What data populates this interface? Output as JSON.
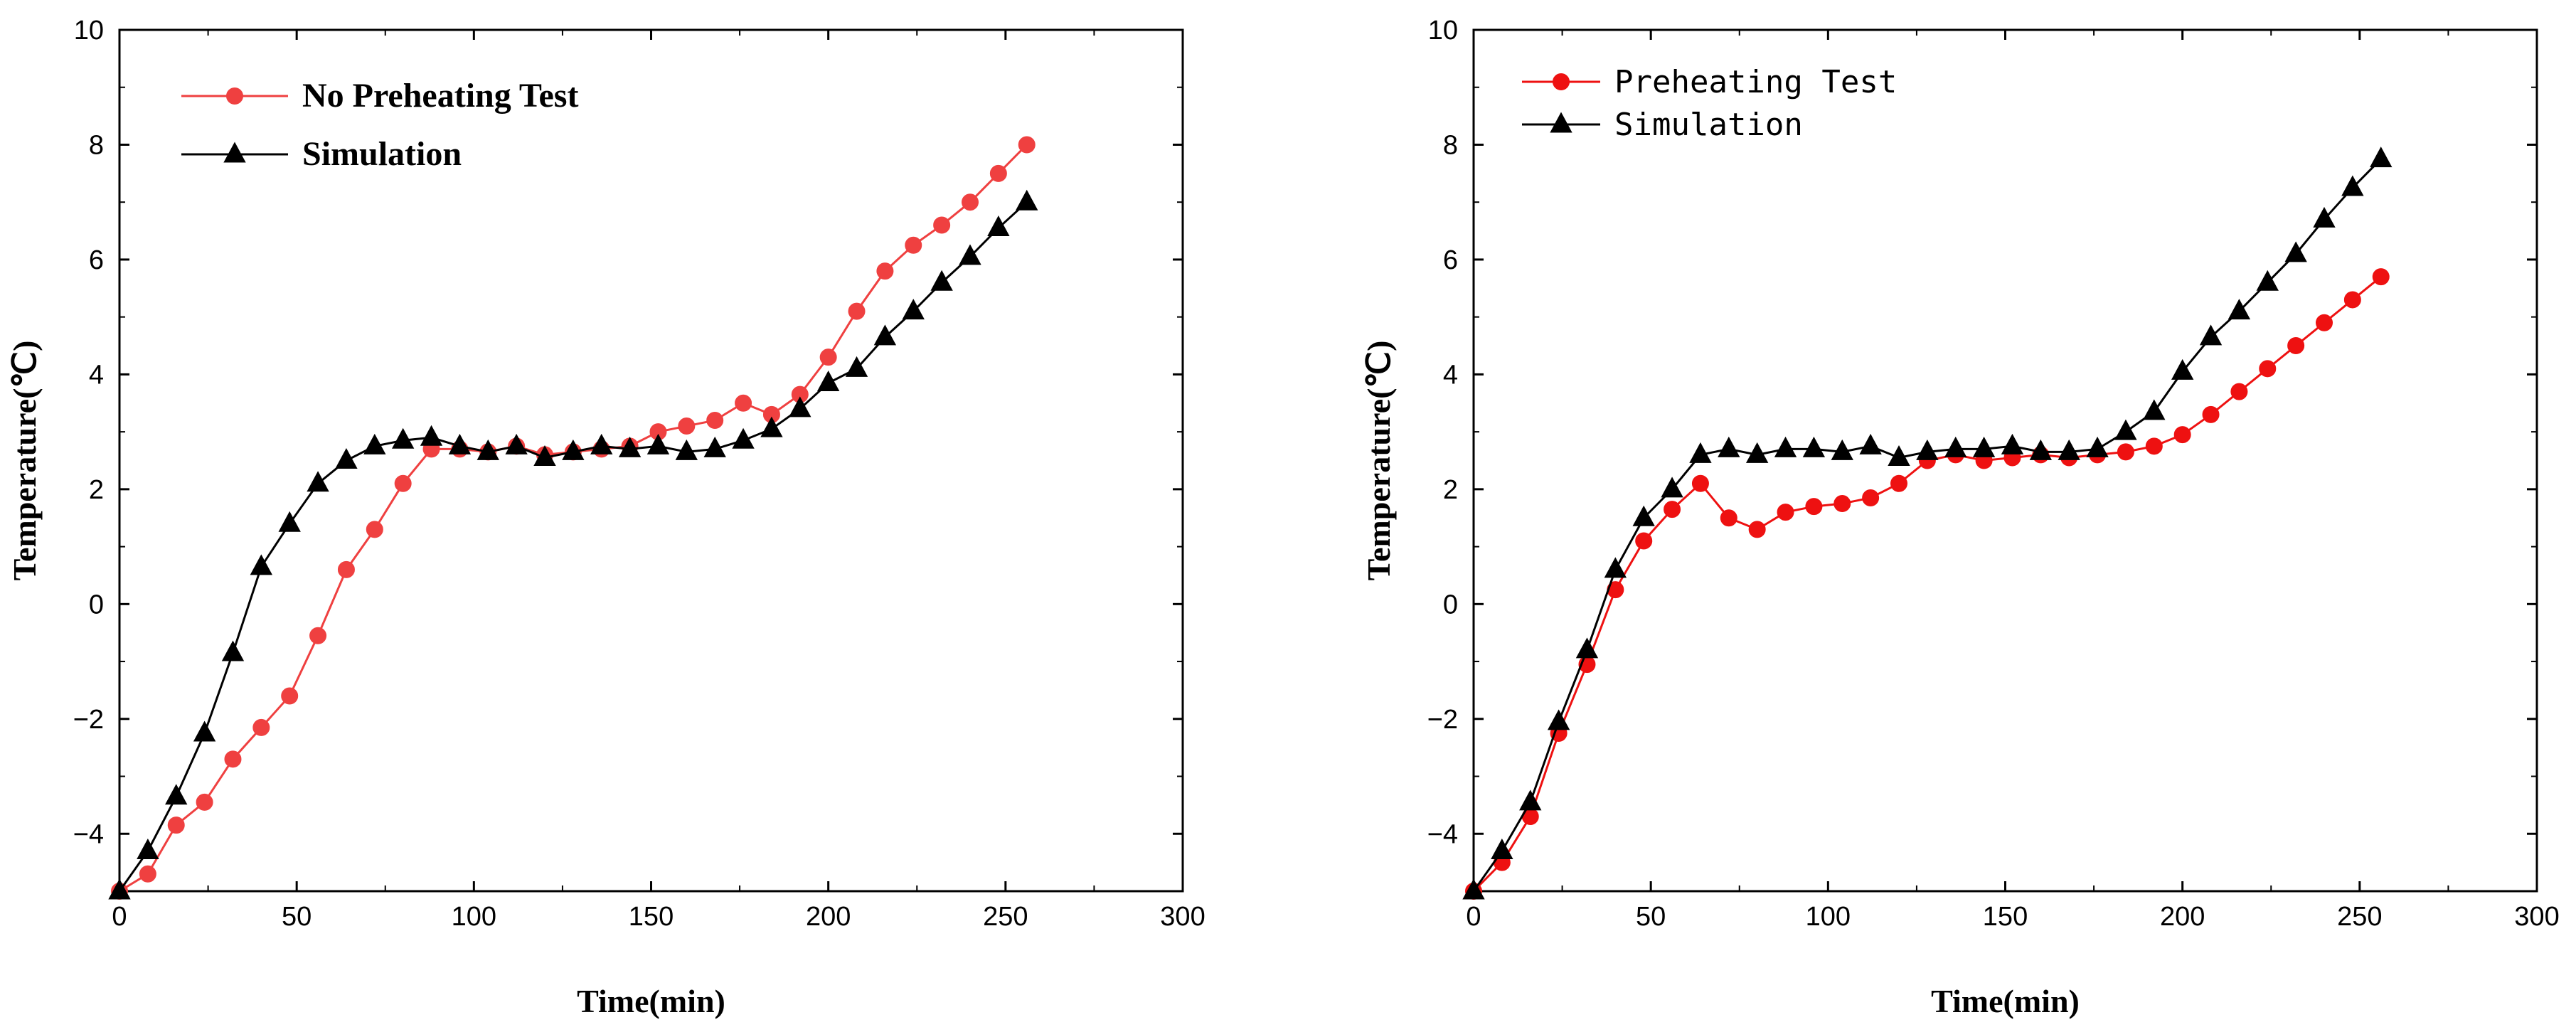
{
  "chart_data": [
    {
      "type": "line",
      "title": "",
      "xlabel": "Time(min)",
      "ylabel": "Temperature(℃)",
      "xlim": [
        0,
        300
      ],
      "ylim": [
        -5,
        10
      ],
      "xticks": [
        0,
        50,
        100,
        150,
        200,
        250,
        300
      ],
      "yticks": [
        -4,
        -2,
        0,
        2,
        4,
        6,
        8,
        10
      ],
      "grid": false,
      "legend_position": "top-left",
      "series": [
        {
          "name": "No Preheating Test",
          "color": "#ef4040",
          "marker": "circle",
          "x": [
            0,
            8,
            16,
            24,
            32,
            40,
            48,
            56,
            64,
            72,
            80,
            88,
            96,
            104,
            112,
            120,
            128,
            136,
            144,
            152,
            160,
            168,
            176,
            184,
            192,
            200,
            208,
            216,
            224,
            232,
            240,
            248,
            256
          ],
          "values": [
            -5.0,
            -4.7,
            -3.85,
            -3.45,
            -2.7,
            -2.15,
            -1.6,
            -0.55,
            0.6,
            1.3,
            2.1,
            2.7,
            2.7,
            2.65,
            2.75,
            2.6,
            2.65,
            2.7,
            2.75,
            3.0,
            3.1,
            3.2,
            3.5,
            3.3,
            3.65,
            4.3,
            5.1,
            5.8,
            6.25,
            6.6,
            7.0,
            7.5,
            8.0
          ]
        },
        {
          "name": "Simulation",
          "color": "#000000",
          "marker": "triangle",
          "x": [
            0,
            8,
            16,
            24,
            32,
            40,
            48,
            56,
            64,
            72,
            80,
            88,
            96,
            104,
            112,
            120,
            128,
            136,
            144,
            152,
            160,
            168,
            176,
            184,
            192,
            200,
            208,
            216,
            224,
            232,
            240,
            248,
            256
          ],
          "values": [
            -5.0,
            -4.3,
            -3.35,
            -2.25,
            -0.85,
            0.65,
            1.4,
            2.1,
            2.5,
            2.75,
            2.85,
            2.9,
            2.75,
            2.65,
            2.75,
            2.55,
            2.65,
            2.75,
            2.7,
            2.75,
            2.65,
            2.7,
            2.85,
            3.05,
            3.4,
            3.85,
            4.1,
            4.65,
            5.1,
            5.6,
            6.05,
            6.55,
            7.0
          ]
        }
      ]
    },
    {
      "type": "line",
      "title": "",
      "xlabel": "Time(min)",
      "ylabel": "Temperature(℃)",
      "xlim": [
        0,
        300
      ],
      "ylim": [
        -5,
        10
      ],
      "xticks": [
        0,
        50,
        100,
        150,
        200,
        250,
        300
      ],
      "yticks": [
        -4,
        -2,
        0,
        2,
        4,
        6,
        8,
        10
      ],
      "grid": false,
      "legend_position": "top-left",
      "series": [
        {
          "name": "Preheating Test",
          "color": "#ee1111",
          "marker": "circle",
          "x": [
            0,
            8,
            16,
            24,
            32,
            40,
            48,
            56,
            64,
            72,
            80,
            88,
            96,
            104,
            112,
            120,
            128,
            136,
            144,
            152,
            160,
            168,
            176,
            184,
            192,
            200,
            208,
            216,
            224,
            232,
            240,
            248,
            256
          ],
          "values": [
            -5.0,
            -4.5,
            -3.7,
            -2.25,
            -1.05,
            0.25,
            1.1,
            1.65,
            2.1,
            1.5,
            1.3,
            1.6,
            1.7,
            1.75,
            1.85,
            2.1,
            2.5,
            2.6,
            2.5,
            2.55,
            2.6,
            2.55,
            2.6,
            2.65,
            2.75,
            2.95,
            3.3,
            3.7,
            4.1,
            4.5,
            4.9,
            5.3,
            5.7
          ]
        },
        {
          "name": "Simulation",
          "color": "#000000",
          "marker": "triangle",
          "x": [
            0,
            8,
            16,
            24,
            32,
            40,
            48,
            56,
            64,
            72,
            80,
            88,
            96,
            104,
            112,
            120,
            128,
            136,
            144,
            152,
            160,
            168,
            176,
            184,
            192,
            200,
            208,
            216,
            224,
            232,
            240,
            248,
            256
          ],
          "values": [
            -5.0,
            -4.3,
            -3.45,
            -2.05,
            -0.8,
            0.6,
            1.5,
            2.0,
            2.6,
            2.7,
            2.6,
            2.7,
            2.7,
            2.65,
            2.75,
            2.55,
            2.65,
            2.7,
            2.7,
            2.75,
            2.65,
            2.65,
            2.7,
            3.0,
            3.35,
            4.05,
            4.65,
            5.1,
            5.6,
            6.1,
            6.7,
            7.25,
            7.75
          ]
        }
      ]
    }
  ]
}
